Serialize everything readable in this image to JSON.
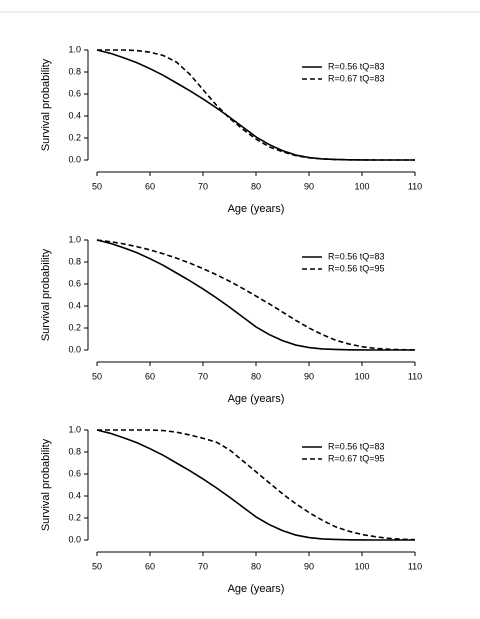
{
  "chart_data": [
    {
      "type": "line",
      "xlabel": "Age (years)",
      "ylabel": "Survival probability",
      "x": [
        50,
        52.5,
        55,
        57.5,
        60,
        62.5,
        65,
        67.5,
        70,
        72.5,
        75,
        77.5,
        80,
        82.5,
        85,
        87.5,
        90,
        92.5,
        95,
        97.5,
        100,
        102.5,
        105,
        107.5,
        110
      ],
      "series": [
        {
          "name": "R=0.56  tQ=83",
          "color": "#000000",
          "linestyle": "solid",
          "values": [
            1.0,
            0.97,
            0.93,
            0.885,
            0.83,
            0.77,
            0.7,
            0.63,
            0.555,
            0.475,
            0.39,
            0.3,
            0.21,
            0.14,
            0.085,
            0.045,
            0.022,
            0.01,
            0.005,
            0.002,
            0.001,
            0,
            0,
            0,
            0
          ]
        },
        {
          "name": "R=0.67  tQ=83",
          "color": "#000000",
          "linestyle": "dashed",
          "values": [
            1.0,
            1.0,
            1.0,
            0.995,
            0.98,
            0.95,
            0.89,
            0.78,
            0.64,
            0.5,
            0.38,
            0.28,
            0.19,
            0.12,
            0.075,
            0.04,
            0.02,
            0.01,
            0.004,
            0.002,
            0.001,
            0,
            0,
            0,
            0
          ]
        }
      ],
      "xlim": [
        47.6,
        112.4
      ],
      "xticks": [
        50,
        60,
        70,
        80,
        90,
        100,
        110
      ],
      "ylim": [
        -0.04,
        1.04
      ],
      "yticks": [
        {
          "value": 0,
          "label": "0.0"
        },
        0.2,
        0.4,
        0.6,
        0.8,
        {
          "value": 1,
          "label": "1.0"
        }
      ],
      "legend": "topright",
      "grid": false
    },
    {
      "type": "line",
      "xlabel": "Age (years)",
      "ylabel": "Survival probability",
      "x": [
        50,
        52.5,
        55,
        57.5,
        60,
        62.5,
        65,
        67.5,
        70,
        72.5,
        75,
        77.5,
        80,
        82.5,
        85,
        87.5,
        90,
        92.5,
        95,
        97.5,
        100,
        102.5,
        105,
        107.5,
        110
      ],
      "series": [
        {
          "name": "R=0.56  tQ=83",
          "color": "#000000",
          "linestyle": "solid",
          "values": [
            1.0,
            0.97,
            0.93,
            0.885,
            0.83,
            0.77,
            0.7,
            0.63,
            0.555,
            0.475,
            0.39,
            0.3,
            0.21,
            0.14,
            0.085,
            0.045,
            0.022,
            0.01,
            0.005,
            0.002,
            0.001,
            0,
            0,
            0,
            0
          ]
        },
        {
          "name": "R=0.56  tQ=95",
          "color": "#000000",
          "linestyle": "dashed",
          "values": [
            1.0,
            0.985,
            0.965,
            0.94,
            0.91,
            0.875,
            0.835,
            0.79,
            0.74,
            0.685,
            0.625,
            0.56,
            0.49,
            0.42,
            0.345,
            0.27,
            0.2,
            0.14,
            0.09,
            0.055,
            0.03,
            0.015,
            0.007,
            0.003,
            0.001
          ]
        }
      ],
      "xlim": [
        47.6,
        112.4
      ],
      "xticks": [
        50,
        60,
        70,
        80,
        90,
        100,
        110
      ],
      "ylim": [
        -0.04,
        1.04
      ],
      "yticks": [
        {
          "value": 0,
          "label": "0.0"
        },
        0.2,
        0.4,
        0.6,
        0.8,
        {
          "value": 1,
          "label": "1.0"
        }
      ],
      "legend": "topright",
      "grid": false
    },
    {
      "type": "line",
      "xlabel": "Age (years)",
      "ylabel": "Survival probability",
      "x": [
        50,
        52.5,
        55,
        57.5,
        60,
        62.5,
        65,
        67.5,
        70,
        72.5,
        75,
        77.5,
        80,
        82.5,
        85,
        87.5,
        90,
        92.5,
        95,
        97.5,
        100,
        102.5,
        105,
        107.5,
        110
      ],
      "series": [
        {
          "name": "R=0.56  tQ=83",
          "color": "#000000",
          "linestyle": "solid",
          "values": [
            1.0,
            0.97,
            0.93,
            0.885,
            0.83,
            0.77,
            0.7,
            0.63,
            0.555,
            0.475,
            0.39,
            0.3,
            0.21,
            0.14,
            0.085,
            0.045,
            0.022,
            0.01,
            0.005,
            0.002,
            0.001,
            0,
            0,
            0,
            0
          ]
        },
        {
          "name": "R=0.67  tQ=95",
          "color": "#000000",
          "linestyle": "dashed",
          "values": [
            1.0,
            1.0,
            1.0,
            1.0,
            1.0,
            0.995,
            0.98,
            0.955,
            0.925,
            0.89,
            0.82,
            0.72,
            0.62,
            0.52,
            0.42,
            0.33,
            0.25,
            0.18,
            0.12,
            0.08,
            0.05,
            0.03,
            0.015,
            0.007,
            0.003
          ]
        }
      ],
      "xlim": [
        47.6,
        112.4
      ],
      "xticks": [
        50,
        60,
        70,
        80,
        90,
        100,
        110
      ],
      "ylim": [
        -0.04,
        1.04
      ],
      "yticks": [
        {
          "value": 0,
          "label": "0.0"
        },
        0.2,
        0.4,
        0.6,
        0.8,
        {
          "value": 1,
          "label": "1.0"
        }
      ],
      "legend": "topright",
      "grid": false
    }
  ]
}
